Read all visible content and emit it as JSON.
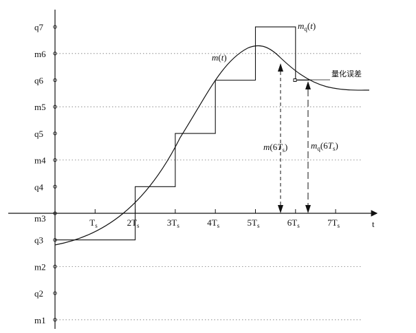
{
  "levels": [
    {
      "id": "q7",
      "label": "q7",
      "kind": "quant",
      "value": 7
    },
    {
      "id": "m6",
      "label": "m6",
      "kind": "boundary",
      "value": 6
    },
    {
      "id": "q6",
      "label": "q6",
      "kind": "quant",
      "value": 5
    },
    {
      "id": "m5",
      "label": "m5",
      "kind": "boundary",
      "value": 4
    },
    {
      "id": "q5",
      "label": "q5",
      "kind": "quant",
      "value": 3
    },
    {
      "id": "m4",
      "label": "m4",
      "kind": "boundary",
      "value": 2
    },
    {
      "id": "q4",
      "label": "q4",
      "kind": "quant",
      "value": 1
    },
    {
      "id": "m3",
      "label": "m3",
      "kind": "boundary",
      "value": 0
    },
    {
      "id": "q3",
      "label": "q3",
      "kind": "quant",
      "value": -1
    },
    {
      "id": "m2",
      "label": "m2",
      "kind": "boundary",
      "value": -2
    },
    {
      "id": "q2",
      "label": "q2",
      "kind": "quant",
      "value": -3
    },
    {
      "id": "m1",
      "label": "m1",
      "kind": "boundary",
      "value": -4
    }
  ],
  "time_axis": {
    "label": "t",
    "ticks": [
      {
        "n": 1,
        "prefix": "",
        "base": "T",
        "sub": "s"
      },
      {
        "n": 2,
        "prefix": "2",
        "base": "T",
        "sub": "s"
      },
      {
        "n": 3,
        "prefix": "3",
        "base": "T",
        "sub": "s"
      },
      {
        "n": 4,
        "prefix": "4",
        "base": "T",
        "sub": "s"
      },
      {
        "n": 5,
        "prefix": "5",
        "base": "T",
        "sub": "s"
      },
      {
        "n": 6,
        "prefix": "6",
        "base": "T",
        "sub": "s"
      },
      {
        "n": 7,
        "prefix": "7",
        "base": "T",
        "sub": "s"
      }
    ]
  },
  "signals": {
    "analog_label": "m(t)",
    "quantized_label": "mq(t)",
    "staircase": [
      {
        "t0": 0,
        "t1": 2,
        "level": -1
      },
      {
        "t0": 2,
        "t1": 3,
        "level": 1
      },
      {
        "t0": 3,
        "t1": 4,
        "level": 3
      },
      {
        "t0": 4,
        "t1": 5,
        "level": 5
      },
      {
        "t0": 5,
        "t1": 6,
        "level": 7
      },
      {
        "t0": 6,
        "t1": 6.35,
        "level": 5
      }
    ]
  },
  "annotations": {
    "sample_analog": {
      "pre": "m(6",
      "base": "T",
      "sub": "s",
      "post": ")"
    },
    "sample_quant": {
      "pre": "m",
      "presub": "q",
      "mid": "(6",
      "base": "T",
      "sub": "s",
      "post": ")"
    },
    "error_label": "量化误差"
  }
}
